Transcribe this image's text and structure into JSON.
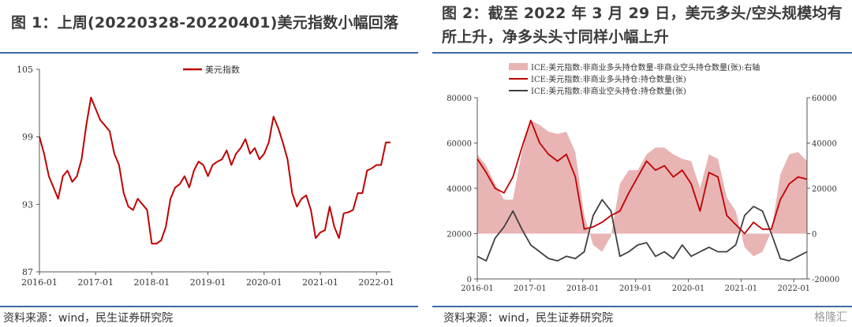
{
  "left": {
    "title": "图 1：上周(20220328-20220401)美元指数小幅回落",
    "source": "资料来源：wind，民生证券研究院",
    "chart_data": {
      "type": "line",
      "legend": "美元指数",
      "color": "#c00000",
      "ylim": [
        87,
        105
      ],
      "yticks": [
        "87",
        "93",
        "99",
        "105"
      ],
      "xticks": [
        "2016-01",
        "2017-01",
        "2018-01",
        "2019-01",
        "2020-01",
        "2021-01",
        "2022-01"
      ],
      "x": [
        "2016-01",
        "2016-02",
        "2016-03",
        "2016-04",
        "2016-05",
        "2016-06",
        "2016-07",
        "2016-08",
        "2016-09",
        "2016-10",
        "2016-11",
        "2016-12",
        "2017-01",
        "2017-02",
        "2017-03",
        "2017-04",
        "2017-05",
        "2017-06",
        "2017-07",
        "2017-08",
        "2017-09",
        "2017-10",
        "2017-11",
        "2017-12",
        "2018-01",
        "2018-02",
        "2018-03",
        "2018-04",
        "2018-05",
        "2018-06",
        "2018-07",
        "2018-08",
        "2018-09",
        "2018-10",
        "2018-11",
        "2018-12",
        "2019-01",
        "2019-02",
        "2019-03",
        "2019-04",
        "2019-05",
        "2019-06",
        "2019-07",
        "2019-08",
        "2019-09",
        "2019-10",
        "2019-11",
        "2019-12",
        "2020-01",
        "2020-02",
        "2020-03",
        "2020-04",
        "2020-05",
        "2020-06",
        "2020-07",
        "2020-08",
        "2020-09",
        "2020-10",
        "2020-11",
        "2020-12",
        "2021-01",
        "2021-02",
        "2021-03",
        "2021-04",
        "2021-05",
        "2021-06",
        "2021-07",
        "2021-08",
        "2021-09",
        "2021-10",
        "2021-11",
        "2021-12",
        "2022-01",
        "2022-02",
        "2022-03",
        "2022-04"
      ],
      "values": [
        99.0,
        97.5,
        95.5,
        94.5,
        93.5,
        95.5,
        96.0,
        95.0,
        95.5,
        97.0,
        100.0,
        102.5,
        101.5,
        100.5,
        100.0,
        99.5,
        97.5,
        96.5,
        94.0,
        92.8,
        92.5,
        93.5,
        93.0,
        92.5,
        89.5,
        89.5,
        89.8,
        91.0,
        93.5,
        94.5,
        94.8,
        95.5,
        94.5,
        96.0,
        96.8,
        96.5,
        95.5,
        96.5,
        96.8,
        97.0,
        97.8,
        96.5,
        97.5,
        98.0,
        98.8,
        97.5,
        98.0,
        97.0,
        97.5,
        98.5,
        100.8,
        99.8,
        98.5,
        97.0,
        94.0,
        92.8,
        93.5,
        93.8,
        92.5,
        90.0,
        90.5,
        90.7,
        92.8,
        91.0,
        90.0,
        92.2,
        92.3,
        92.5,
        94.0,
        94.0,
        96.0,
        96.2,
        96.5,
        96.5,
        98.5,
        98.5
      ]
    }
  },
  "right": {
    "title": "图 2：截至 2022 年 3 月 29 日，美元多头/空头规模均有所上升，净多头头寸同样小幅上升",
    "source": "资料来源：wind，民生证券研究院",
    "watermark": "格隆汇",
    "chart_data": {
      "type": "line",
      "legend": [
        {
          "name": "ICE:美元指数:非商业多头持仓数量-非商业空头持仓数量(张):右轴",
          "style": "area",
          "color": "#e8b4b4"
        },
        {
          "name": "ICE:美元指数:非商业多头持仓:持仓数量(张)",
          "style": "line",
          "color": "#c00000"
        },
        {
          "name": "ICE:美元指数:非商业空头持仓:持仓数量(张)",
          "style": "line",
          "color": "#404040"
        }
      ],
      "ylim_left": [
        0,
        80000
      ],
      "ylim_right": [
        -20000,
        60000
      ],
      "yticks_left": [
        "0",
        "20000",
        "40000",
        "60000",
        "80000"
      ],
      "yticks_right": [
        "-20000",
        "0",
        "20000",
        "40000",
        "60000"
      ],
      "xticks": [
        "2016-01",
        "2017-01",
        "2018-01",
        "2019-01",
        "2020-01",
        "2021-01",
        "2022-01"
      ],
      "x": [
        "2016-01",
        "2016-03",
        "2016-05",
        "2016-07",
        "2016-09",
        "2016-11",
        "2017-01",
        "2017-03",
        "2017-05",
        "2017-07",
        "2017-09",
        "2017-11",
        "2018-01",
        "2018-03",
        "2018-05",
        "2018-07",
        "2018-09",
        "2018-11",
        "2019-01",
        "2019-03",
        "2019-05",
        "2019-07",
        "2019-09",
        "2019-11",
        "2020-01",
        "2020-03",
        "2020-05",
        "2020-07",
        "2020-09",
        "2020-11",
        "2021-01",
        "2021-03",
        "2021-05",
        "2021-07",
        "2021-09",
        "2021-11",
        "2022-01",
        "2022-03"
      ],
      "long": [
        53000,
        47000,
        40000,
        38000,
        45000,
        58000,
        70000,
        60000,
        55000,
        52000,
        55000,
        45000,
        22000,
        23000,
        25000,
        28000,
        30000,
        38000,
        45000,
        52000,
        48000,
        50000,
        45000,
        48000,
        42000,
        30000,
        47000,
        45000,
        28000,
        24000,
        20000,
        25000,
        22000,
        22000,
        35000,
        42000,
        45000,
        44000
      ],
      "short": [
        10000,
        8000,
        18000,
        23000,
        30000,
        22000,
        15000,
        12000,
        9000,
        8000,
        10000,
        9000,
        12000,
        28000,
        35000,
        30000,
        10000,
        12000,
        15000,
        16000,
        10000,
        12000,
        9000,
        15000,
        10000,
        12000,
        14000,
        12000,
        12000,
        15000,
        28000,
        32000,
        30000,
        20000,
        9000,
        8000,
        10000,
        12000
      ],
      "net": [
        35000,
        30000,
        22000,
        15000,
        15000,
        36000,
        50000,
        48000,
        45000,
        44000,
        45000,
        36000,
        8000,
        -5000,
        -8000,
        -1000,
        22000,
        28000,
        28000,
        35000,
        38000,
        38000,
        35000,
        33000,
        32000,
        20000,
        35000,
        33000,
        16000,
        10000,
        -6000,
        -10000,
        -8000,
        1000,
        26000,
        35000,
        36000,
        32000
      ]
    }
  }
}
